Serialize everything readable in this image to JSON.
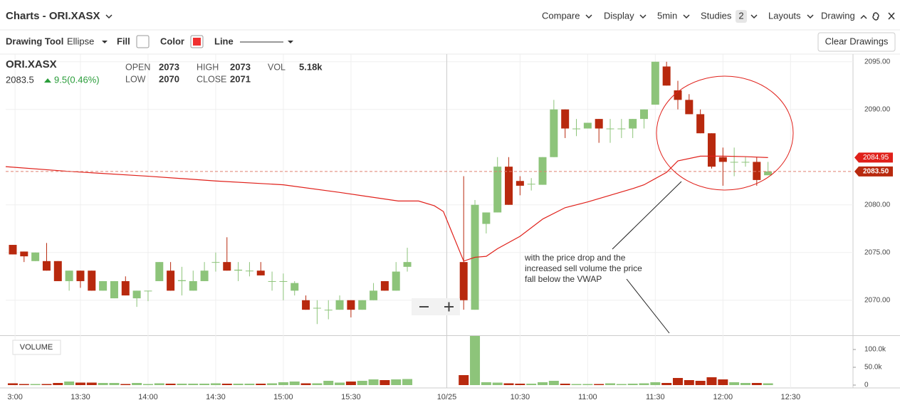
{
  "header": {
    "title": "Charts - ORI.XASX",
    "menu": [
      "Compare",
      "Display",
      "5min",
      "Studies",
      "Layouts",
      "Drawing"
    ],
    "studies_count": "2"
  },
  "toolbar": {
    "drawing_tool_label": "Drawing Tool",
    "drawing_tool": "Ellipse",
    "fill_label": "Fill",
    "color_label": "Color",
    "line_label": "Line",
    "clear": "Clear Drawings"
  },
  "quote": {
    "symbol": "ORI.XASX",
    "price": "2083.5",
    "change": "9.5(0.46%)",
    "open_label": "OPEN",
    "open": "2073",
    "high_label": "HIGH",
    "high": "2073",
    "vol_label": "VOL",
    "vol": "5.18k",
    "low_label": "LOW",
    "low": "2070",
    "close_label": "CLOSE",
    "close": "2071"
  },
  "chart_data": {
    "type": "candlestick",
    "volume_label": "VOLUME",
    "annotation": [
      "with the price drop and the",
      "increased sell volume the price",
      "fall below the VWAP"
    ],
    "up_color": "#8dc47a",
    "down_color": "#b8290e",
    "vwap_color": "#e0201a",
    "x": [
      0,
      1,
      2,
      3,
      4,
      5,
      6,
      7,
      8,
      9,
      10,
      11,
      12,
      13,
      14,
      15,
      16,
      17,
      18,
      19,
      20,
      21,
      22,
      23,
      24,
      25,
      26,
      27,
      28,
      29,
      30,
      31,
      32,
      33,
      34,
      35,
      40,
      41,
      42,
      43,
      44,
      45,
      46,
      47,
      48,
      49,
      50,
      51,
      52,
      53,
      54,
      55,
      56,
      57,
      58,
      59,
      60,
      61,
      62,
      63,
      64,
      65,
      66,
      67
    ],
    "open": [
      2075.8,
      2075.1,
      2074.1,
      2074.1,
      2074.1,
      2072.0,
      2073.1,
      2073.1,
      2071.0,
      2070.2,
      2072.0,
      2070.2,
      2071.0,
      2072.0,
      2073.1,
      2072.0,
      2071.0,
      2072.0,
      2074.0,
      2074.0,
      2073.1,
      2073.1,
      2073.1,
      2072.0,
      2072.0,
      2071.0,
      2070.0,
      2069.2,
      2069.0,
      2069.0,
      2070.0,
      2069.0,
      2070.0,
      2072.0,
      2071.0,
      2073.5,
      2074.0,
      2069.0,
      2078.0,
      2079.2,
      2084.0,
      2082.5,
      2082.2,
      2082.1,
      2085.0,
      2090.0,
      2088.0,
      2088.0,
      2089.0,
      2088.0,
      2088.0,
      2088.0,
      2089.0,
      2090.5,
      2094.5,
      2092.0,
      2091.0,
      2089.5,
      2087.5,
      2085.0,
      2084.5,
      2084.5,
      2084.5,
      2083.1
    ],
    "high": [
      2075.8,
      2075.1,
      2075.0,
      2076.0,
      2074.1,
      2073.1,
      2073.1,
      2073.1,
      2072.0,
      2072.0,
      2072.5,
      2071.0,
      2071.0,
      2074.0,
      2074.0,
      2073.5,
      2073.1,
      2074.0,
      2075.0,
      2076.6,
      2074.0,
      2074.0,
      2074.0,
      2073.0,
      2072.8,
      2072.0,
      2070.5,
      2070.0,
      2070.0,
      2070.5,
      2070.0,
      2070.0,
      2071.8,
      2072.0,
      2074.0,
      2075.5,
      2083.0,
      2080.5,
      2079.2,
      2085.0,
      2085.0,
      2083.0,
      2082.8,
      2085.0,
      2091.0,
      2090.0,
      2089.0,
      2088.6,
      2089.0,
      2089.0,
      2089.0,
      2089.0,
      2090.0,
      2095.0,
      2095.0,
      2093.0,
      2091.6,
      2090.0,
      2087.5,
      2086.0,
      2086.0,
      2085.0,
      2085.0,
      2084.5
    ],
    "low": [
      2074.8,
      2074.0,
      2074.1,
      2073.1,
      2072.0,
      2071.0,
      2071.3,
      2071.0,
      2071.0,
      2070.2,
      2070.5,
      2069.3,
      2069.9,
      2072.0,
      2071.0,
      2070.5,
      2071.0,
      2072.0,
      2073.0,
      2073.1,
      2072.0,
      2072.5,
      2072.6,
      2071.0,
      2070.0,
      2070.5,
      2069.0,
      2067.5,
      2068.0,
      2069.0,
      2068.2,
      2069.0,
      2070.0,
      2071.0,
      2071.0,
      2073.0,
      2069.0,
      2069.0,
      2077.0,
      2079.2,
      2080.0,
      2081.0,
      2081.5,
      2082.1,
      2085.0,
      2087.0,
      2087.2,
      2088.0,
      2086.5,
      2086.5,
      2087.0,
      2087.0,
      2088.0,
      2090.5,
      2092.5,
      2090.0,
      2089.5,
      2087.5,
      2083.8,
      2082.0,
      2083.0,
      2084.0,
      2082.0,
      2083.1
    ],
    "close": [
      2074.8,
      2074.6,
      2075.0,
      2073.1,
      2072.0,
      2073.1,
      2072.0,
      2071.0,
      2072.0,
      2072.0,
      2070.5,
      2071.0,
      2071.0,
      2074.0,
      2071.0,
      2072.1,
      2072.0,
      2073.1,
      2074.0,
      2073.1,
      2073.2,
      2073.1,
      2072.6,
      2072.0,
      2072.0,
      2071.8,
      2069.0,
      2069.2,
      2069.0,
      2070.0,
      2069.0,
      2070.0,
      2071.0,
      2071.0,
      2073.0,
      2074.0,
      2070.0,
      2080.0,
      2079.2,
      2084.0,
      2080.0,
      2082.0,
      2082.2,
      2085.0,
      2090.0,
      2088.0,
      2088.0,
      2088.6,
      2088.0,
      2088.0,
      2088.0,
      2089.0,
      2090.0,
      2095.0,
      2092.5,
      2091.0,
      2089.5,
      2087.5,
      2084.0,
      2084.5,
      2084.5,
      2084.5,
      2082.6,
      2083.5
    ],
    "volume": [
      5000,
      3000,
      3000,
      3000,
      6000,
      10000,
      7000,
      7000,
      6000,
      6000,
      3000,
      6000,
      3000,
      5000,
      4000,
      4000,
      4000,
      4000,
      5000,
      4000,
      4000,
      4000,
      4000,
      5000,
      8000,
      10000,
      5000,
      5000,
      12000,
      7000,
      10000,
      12000,
      16000,
      14000,
      16000,
      17000,
      28000,
      140000,
      8000,
      7000,
      5000,
      4000,
      4000,
      8000,
      12000,
      4000,
      3000,
      3000,
      3000,
      5000,
      3000,
      4000,
      5000,
      8000,
      6000,
      20000,
      14000,
      12000,
      22000,
      16000,
      8000,
      6000,
      6000,
      5000
    ],
    "vwap": {
      "x": [
        -0.63,
        5,
        12,
        18,
        24,
        29,
        34.2,
        36,
        37.4,
        38.2,
        40,
        41,
        42,
        43,
        45,
        47,
        49,
        51,
        53,
        55,
        56,
        58,
        59,
        61,
        63,
        65,
        67
      ],
      "values": [
        2084.0,
        2083.5,
        2083.0,
        2082.5,
        2082.1,
        2081.3,
        2080.4,
        2080.4,
        2079.9,
        2079.3,
        2074.1,
        2074.5,
        2074.6,
        2075.4,
        2076.7,
        2078.5,
        2079.7,
        2080.3,
        2081.0,
        2081.7,
        2082.1,
        2083.4,
        2084.6,
        2085.1,
        2085.1,
        2085.05,
        2084.95
      ],
      "last_label": "2084.95"
    },
    "last_price": 2083.5,
    "last_price_label": "2083.50",
    "xlim": [
      -0.63,
      74.54
    ],
    "xticks": [
      {
        "value": 0.2,
        "label": "3:00"
      },
      {
        "value": 6,
        "label": "13:30"
      },
      {
        "value": 12,
        "label": "14:00"
      },
      {
        "value": 18,
        "label": "14:30"
      },
      {
        "value": 24,
        "label": "15:00"
      },
      {
        "value": 30,
        "label": "15:30"
      },
      {
        "value": 38.5,
        "label": "10/25"
      },
      {
        "value": 45,
        "label": "10:30"
      },
      {
        "value": 51,
        "label": "11:00"
      },
      {
        "value": 57,
        "label": "11:30"
      },
      {
        "value": 63,
        "label": "12:00"
      },
      {
        "value": 69,
        "label": "12:30"
      }
    ],
    "ylim": [
      2066.4,
      2095.8
    ],
    "yticks": [
      {
        "value": 2095,
        "label": "2095.00"
      },
      {
        "value": 2090,
        "label": "2090.00"
      },
      {
        "value": 2080,
        "label": "2080.00"
      },
      {
        "value": 2075,
        "label": "2075.00"
      },
      {
        "value": 2070,
        "label": "2070.00"
      }
    ],
    "vlim": [
      0,
      138000
    ],
    "vticks": [
      0,
      {
        "value": 50000,
        "label": "50.0k"
      },
      {
        "value": 100000,
        "label": "100.0k"
      }
    ],
    "grid": true
  }
}
